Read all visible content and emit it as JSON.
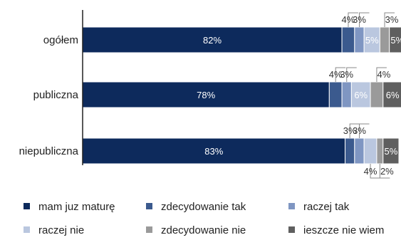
{
  "chart_data": {
    "type": "bar",
    "orientation": "horizontal",
    "stacked": true,
    "categories": [
      "ogółem",
      "publiczna",
      "niepubliczna"
    ],
    "series": [
      {
        "name": "mam juz maturę",
        "color": "#0d2a5c",
        "values": [
          82,
          78,
          83
        ]
      },
      {
        "name": "zdecydowanie tak",
        "color": "#3b5a8e",
        "values": [
          4,
          4,
          3
        ]
      },
      {
        "name": "raczej tak",
        "color": "#7f96c2",
        "values": [
          3,
          3,
          3
        ]
      },
      {
        "name": "raczej nie",
        "color": "#bac7df",
        "values": [
          5,
          6,
          4
        ]
      },
      {
        "name": "zdecydowanie nie",
        "color": "#9a9a9a",
        "values": [
          3,
          4,
          2
        ]
      },
      {
        "name": "ieszcze nie wiem",
        "color": "#5f5f5f",
        "values": [
          5,
          6,
          5
        ]
      }
    ],
    "labels": [
      [
        "82%",
        "4%",
        "3%",
        "5%",
        "3%",
        "5%"
      ],
      [
        "78%",
        "4%",
        "3%",
        "6%",
        "4%",
        "6%"
      ],
      [
        "83%",
        "3%",
        "3%",
        "4%",
        "2%",
        "5%"
      ]
    ],
    "xlim": [
      0,
      100
    ],
    "grid": false,
    "legend_position": "bottom"
  }
}
